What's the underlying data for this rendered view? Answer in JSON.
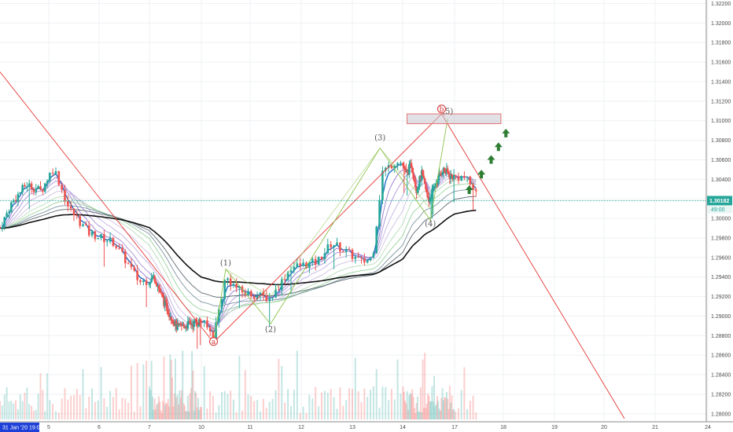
{
  "chart_data": {
    "type": "candlestick",
    "instrument_price_tag": "1.30182",
    "countdown_tag": "49:00",
    "date_badge": "31 Jan '20  19:00",
    "x_ticks": [
      {
        "label": "5",
        "day": 5
      },
      {
        "label": "6",
        "day": 6
      },
      {
        "label": "7",
        "day": 7
      },
      {
        "label": "10",
        "day": 10
      },
      {
        "label": "11",
        "day": 11
      },
      {
        "label": "12",
        "day": 12
      },
      {
        "label": "13",
        "day": 13
      },
      {
        "label": "14",
        "day": 14
      },
      {
        "label": "17",
        "day": 17
      },
      {
        "label": "18",
        "day": 18
      },
      {
        "label": "19",
        "day": 19
      },
      {
        "label": "20",
        "day": 20
      },
      {
        "label": "21",
        "day": 21
      },
      {
        "label": "24",
        "day": 24
      }
    ],
    "y_ticks": [
      "1.32200",
      "1.32000",
      "1.31800",
      "1.31600",
      "1.31400",
      "1.31200",
      "1.31000",
      "1.30800",
      "1.30600",
      "1.30400",
      "1.30200",
      "1.30000",
      "1.29800",
      "1.29600",
      "1.29400",
      "1.29200",
      "1.29000",
      "1.28800",
      "1.28600",
      "1.28400",
      "1.28200",
      "1.28000"
    ],
    "y_range": [
      1.2795,
      1.3222
    ],
    "current_price": 1.30182,
    "wave_labels": [
      {
        "text": "(1)",
        "day": 10.5,
        "price": 1.2952
      },
      {
        "text": "(2)",
        "day": 11.4,
        "price": 1.2884
      },
      {
        "text": "(3)",
        "day": 13.55,
        "price": 1.308
      },
      {
        "text": "(4)",
        "day": 15.6,
        "price": 1.2992
      },
      {
        "text": "(5)",
        "day": 16.6,
        "price": 1.3107
      }
    ],
    "circled_labels": [
      {
        "text": "a",
        "day": 10.25,
        "price": 1.2874
      },
      {
        "text": "b",
        "day": 16.25,
        "price": 1.3112
      }
    ],
    "resistance_zone": {
      "day_from": 14.25,
      "day_to": 17.95,
      "price_top": 1.3107,
      "price_bottom": 1.3097
    }
  }
}
